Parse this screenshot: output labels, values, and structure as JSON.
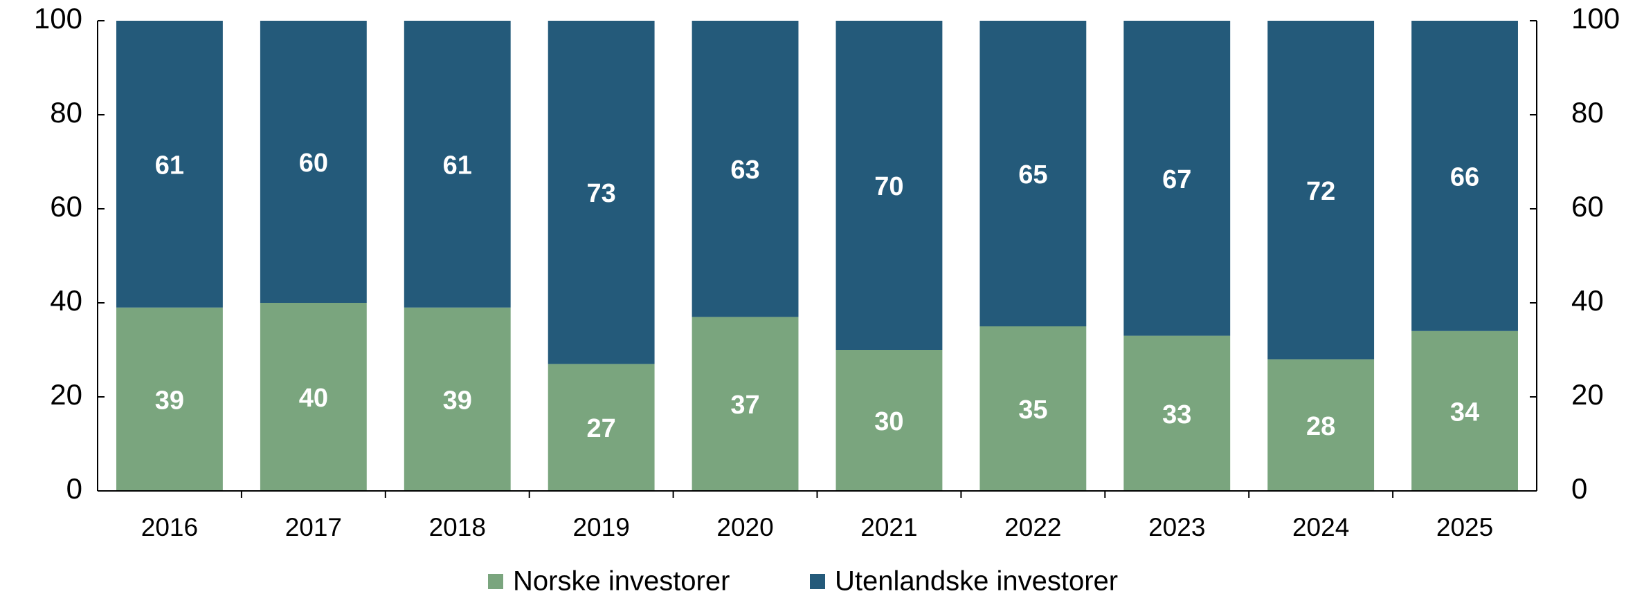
{
  "chart_data": {
    "type": "stacked_bar",
    "categories": [
      "2016",
      "2017",
      "2018",
      "2019",
      "2020",
      "2021",
      "2022",
      "2023",
      "2024",
      "2025"
    ],
    "series": [
      {
        "name": "Norske investorer",
        "color": "#7aa57e",
        "values": [
          39,
          40,
          39,
          27,
          37,
          30,
          35,
          33,
          28,
          34
        ]
      },
      {
        "name": "Utenlandske investorer",
        "color": "#245a7a",
        "values": [
          61,
          60,
          61,
          73,
          63,
          70,
          65,
          67,
          72,
          66
        ]
      }
    ],
    "ylim": [
      0,
      100
    ],
    "yticks": [
      0,
      20,
      40,
      60,
      80,
      100
    ],
    "y2lim": [
      0,
      100
    ],
    "y2ticks": [
      0,
      20,
      40,
      60,
      80,
      100
    ],
    "legend": "bottom"
  }
}
